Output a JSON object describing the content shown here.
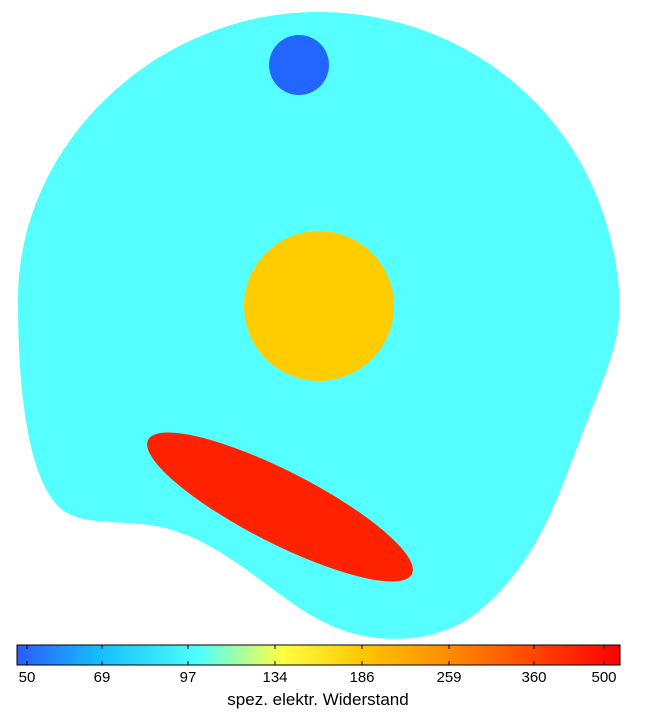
{
  "figure": {
    "colorbar": {
      "label": "spez. elektr. Widerstand",
      "ticks": [
        "50",
        "69",
        "97",
        "134",
        "186",
        "259",
        "360",
        "500"
      ],
      "gradient_stops": [
        "#2a5cff",
        "#16c0ff",
        "#4dffff",
        "#ffff40",
        "#ffc400",
        "#ff8a00",
        "#ff3a00",
        "#ff0000"
      ]
    },
    "regions": [
      {
        "name": "background-tissue",
        "color": "#55ffff"
      },
      {
        "name": "small-circle",
        "color": "#2266ff"
      },
      {
        "name": "large-circle",
        "color": "#ffcc00"
      },
      {
        "name": "elongated-ellipse",
        "color": "#ff2200"
      }
    ]
  }
}
